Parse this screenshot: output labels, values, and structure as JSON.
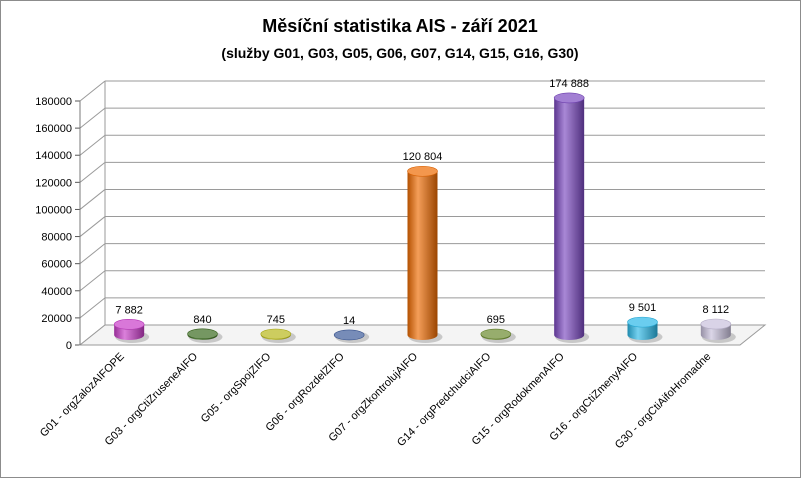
{
  "chart_data": {
    "type": "bar",
    "title": "Měsíční statistika AIS -  září 2021",
    "subtitle": "(služby G01, G03, G05, G06, G07, G14, G15, G16, G30)",
    "xlabel": "",
    "ylabel": "",
    "ylim": [
      0,
      180000
    ],
    "yticks": [
      "0",
      "20000",
      "40000",
      "60000",
      "80000",
      "100000",
      "120000",
      "140000",
      "160000",
      "180000"
    ],
    "grid": true,
    "legend": "none",
    "categories": [
      "G01 - orgZalozAIFOPE",
      "G03 - orgCtiZruseneAIFO",
      "G05 - orgSpojZIFO",
      "G06 - orgRozdelZIFO",
      "G07 - orgZkontrolujAIFO",
      "G14 - orgPredchudciAIFO",
      "G15 - orgRodokmenAIFO",
      "G16 - orgCtiZmenyAIFO",
      "G30 - orgCtiAifoHromadne"
    ],
    "values": [
      7882,
      840,
      745,
      14,
      120804,
      695,
      174888,
      9501,
      8112
    ],
    "data_labels": [
      "7 882",
      "840",
      "745",
      "14",
      "120 804",
      "695",
      "174 888",
      "9 501",
      "8 112"
    ],
    "colors": [
      "#c83cc8",
      "#3a6a1e",
      "#b8b81a",
      "#3d5a9a",
      "#ee6a00",
      "#6b8a2e",
      "#7a48c0",
      "#2ab8e8",
      "#c8c0dc"
    ]
  }
}
